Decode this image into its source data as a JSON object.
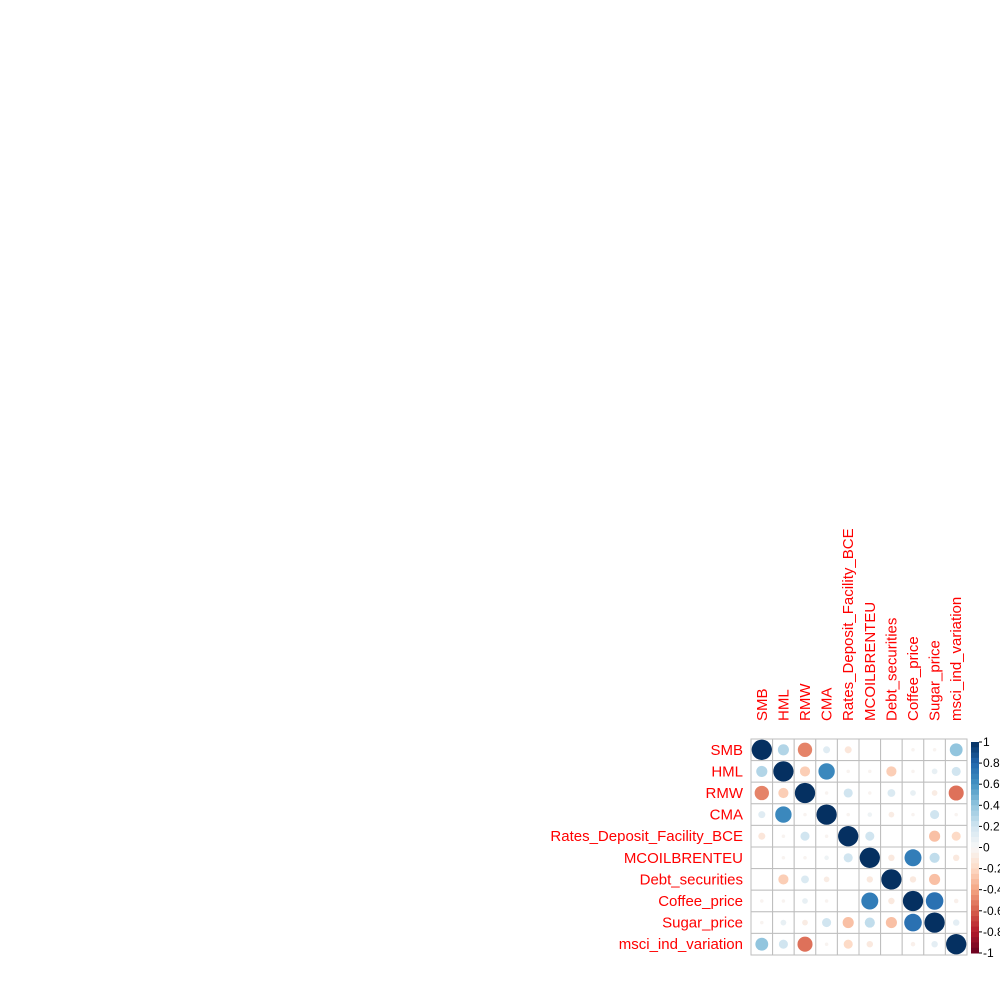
{
  "chart_data": {
    "type": "heatmap",
    "variables": [
      "SMB",
      "HML",
      "RMW",
      "CMA",
      "Rates_Deposit_Facility_BCE",
      "MCOILBRENTEU",
      "Debt_securities",
      "Coffee_price",
      "Sugar_price",
      "msci_ind_variation"
    ],
    "matrix": [
      [
        1.0,
        0.3,
        -0.5,
        0.12,
        -0.12,
        0.0,
        0.0,
        -0.03,
        -0.03,
        0.4
      ],
      [
        0.3,
        1.0,
        -0.25,
        0.65,
        -0.03,
        -0.03,
        -0.25,
        -0.03,
        0.08,
        0.2
      ],
      [
        -0.5,
        -0.25,
        1.0,
        -0.03,
        0.2,
        -0.03,
        0.15,
        0.08,
        -0.08,
        -0.55
      ],
      [
        0.12,
        0.65,
        -0.03,
        1.0,
        -0.03,
        0.05,
        -0.08,
        -0.03,
        0.2,
        -0.03
      ],
      [
        -0.12,
        -0.03,
        0.2,
        -0.03,
        1.0,
        0.2,
        0.0,
        0.0,
        -0.3,
        -0.2
      ],
      [
        0.0,
        -0.03,
        -0.03,
        0.05,
        0.2,
        1.0,
        -0.1,
        0.7,
        0.25,
        -0.1
      ],
      [
        0.0,
        -0.25,
        0.15,
        -0.08,
        0.0,
        -0.1,
        1.0,
        -0.1,
        -0.3,
        0.0
      ],
      [
        -0.03,
        -0.03,
        0.08,
        -0.03,
        0.0,
        0.7,
        -0.1,
        1.0,
        0.75,
        -0.05
      ],
      [
        -0.03,
        0.08,
        -0.08,
        0.2,
        -0.3,
        0.25,
        -0.3,
        0.75,
        1.0,
        0.1
      ],
      [
        0.4,
        0.2,
        -0.55,
        -0.03,
        -0.2,
        -0.1,
        0.0,
        -0.05,
        0.1,
        1.0
      ]
    ],
    "legend": {
      "position": "right",
      "ticks": [
        "1",
        "0.8",
        "0.6",
        "0.4",
        "0.2",
        "0",
        "-0.2",
        "-0.4",
        "-0.6",
        "-0.8",
        "-1"
      ],
      "range": [
        -1,
        1
      ]
    },
    "label_color": "#ff0000",
    "colors": {
      "neg_strong": "#67001f",
      "neg_mid": "#d6604d",
      "neutral": "#f7f7f7",
      "pos_mid": "#4393c3",
      "pos_strong": "#053061"
    }
  }
}
